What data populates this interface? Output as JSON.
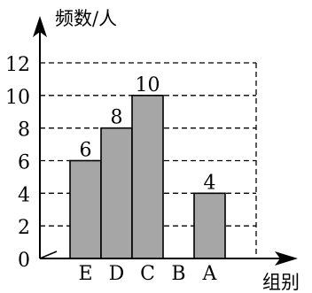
{
  "chart_data": {
    "type": "bar",
    "categories": [
      "E",
      "D",
      "C",
      "B",
      "A"
    ],
    "values": [
      6,
      8,
      10,
      0,
      4
    ],
    "data_labels": [
      "6",
      "8",
      "10",
      "",
      "4"
    ],
    "ylabel": "频数/人",
    "xlabel": "组别",
    "ylim": [
      0,
      12
    ],
    "yticks": [
      0,
      2,
      4,
      6,
      8,
      10,
      12
    ],
    "ytick_labels": [
      "0",
      "2",
      "4",
      "6",
      "8",
      "10",
      "12"
    ],
    "grid": "dashed horizontal",
    "bar_color": "#a6a6a6"
  }
}
